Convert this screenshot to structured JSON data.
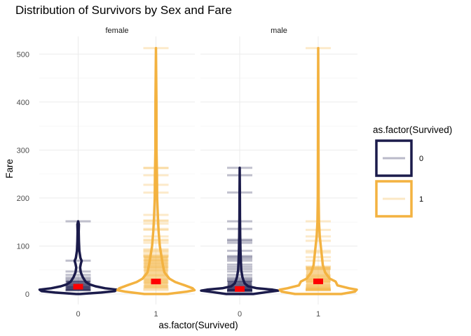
{
  "chart_data": {
    "type": "violin",
    "title": "Distribution of Survivors by Sex and Fare",
    "xlabel": "as.factor(Survived)",
    "ylabel": "Fare",
    "facets": [
      "female",
      "male"
    ],
    "categories": [
      "0",
      "1"
    ],
    "ylim": [
      0,
      530
    ],
    "yticks": [
      0,
      100,
      200,
      300,
      400,
      500
    ],
    "grid": true,
    "legend": {
      "title": "as.factor(Survived)",
      "position": "right",
      "entries": [
        "0",
        "1"
      ]
    },
    "colors": {
      "0": "#1b1b4b",
      "1": "#f3b240",
      "mean": "#ff0000"
    },
    "groups": [
      {
        "facet": "female",
        "survived": "0",
        "max": 151.55,
        "median": 15.25,
        "q1": 7.9,
        "q3": 27.9,
        "ticks": [
          7.75,
          7.9,
          8.05,
          9.5,
          10.5,
          12.5,
          14.45,
          15.25,
          17.8,
          21.1,
          25.47,
          27.9,
          31.27,
          34.38,
          39.69,
          46.9,
          69.55,
          151.55
        ],
        "density": [
          [
            0,
            0.05
          ],
          [
            3,
            0.6
          ],
          [
            6,
            0.95
          ],
          [
            9,
            1.0
          ],
          [
            12,
            0.7
          ],
          [
            16,
            0.45
          ],
          [
            20,
            0.3
          ],
          [
            25,
            0.2
          ],
          [
            30,
            0.16
          ],
          [
            35,
            0.12
          ],
          [
            45,
            0.07
          ],
          [
            55,
            0.05
          ],
          [
            63,
            0.07
          ],
          [
            69,
            0.09
          ],
          [
            75,
            0.06
          ],
          [
            90,
            0.03
          ],
          [
            110,
            0.02
          ],
          [
            130,
            0.015
          ],
          [
            145,
            0.02
          ],
          [
            151.55,
            0
          ]
        ]
      },
      {
        "facet": "female",
        "survived": "1",
        "max": 512.33,
        "median": 26,
        "q1": 12.07,
        "q3": 77.96,
        "ticks": [
          7.75,
          10.5,
          13,
          16.7,
          23,
          26,
          30,
          39,
          49.5,
          55,
          57,
          61.18,
          65,
          69.3,
          71.28,
          76.29,
          77.96,
          79.2,
          80,
          82.17,
          86.5,
          89.1,
          91.08,
          93.5,
          106.43,
          110.88,
          113.28,
          120,
          133.65,
          135.63,
          146.52,
          151.55,
          153.46,
          164.87,
          211.34,
          227.53,
          247.52,
          262.38,
          263,
          512.33
        ],
        "density": [
          [
            0,
            0.3
          ],
          [
            5,
            0.8
          ],
          [
            8,
            1.0
          ],
          [
            12,
            0.95
          ],
          [
            18,
            0.75
          ],
          [
            25,
            0.5
          ],
          [
            32,
            0.35
          ],
          [
            45,
            0.22
          ],
          [
            60,
            0.18
          ],
          [
            80,
            0.14
          ],
          [
            100,
            0.1
          ],
          [
            130,
            0.07
          ],
          [
            160,
            0.05
          ],
          [
            200,
            0.03
          ],
          [
            250,
            0.025
          ],
          [
            300,
            0.015
          ],
          [
            400,
            0.012
          ],
          [
            512.33,
            0
          ]
        ]
      },
      {
        "facet": "male",
        "survived": "0",
        "max": 263,
        "median": 10.5,
        "q1": 7.75,
        "q3": 26.55,
        "ticks": [
          0,
          4.01,
          6.24,
          6.95,
          7.05,
          7.25,
          7.5,
          7.75,
          7.9,
          8.05,
          8.66,
          9.5,
          10.5,
          13,
          14.5,
          16.1,
          20.58,
          26,
          26.55,
          29.13,
          31.28,
          34.38,
          39.69,
          46.9,
          52,
          56.5,
          61.18,
          69.55,
          73.5,
          76.73,
          79.2,
          90,
          106.42,
          110.88,
          113.28,
          135.63,
          151.55,
          211.5,
          247.52,
          263
        ],
        "density": [
          [
            0,
            0.35
          ],
          [
            4,
            0.7
          ],
          [
            7,
            1.0
          ],
          [
            9,
            0.85
          ],
          [
            12,
            0.45
          ],
          [
            16,
            0.22
          ],
          [
            22,
            0.13
          ],
          [
            28,
            0.1
          ],
          [
            35,
            0.07
          ],
          [
            50,
            0.04
          ],
          [
            70,
            0.03
          ],
          [
            90,
            0.02
          ],
          [
            120,
            0.012
          ],
          [
            160,
            0.008
          ],
          [
            200,
            0.006
          ],
          [
            263,
            0
          ]
        ]
      },
      {
        "facet": "male",
        "survived": "1",
        "max": 512.33,
        "median": 26.29,
        "q1": 9.5,
        "q3": 56.5,
        "ticks": [
          0,
          7.75,
          7.9,
          8.05,
          8.66,
          9.5,
          10.5,
          11.13,
          13,
          15.25,
          18.75,
          26,
          26.29,
          30.5,
          31.39,
          35.5,
          39,
          52,
          53.1,
          56.5,
          57,
          69.55,
          76.73,
          86.5,
          90,
          110.88,
          120,
          133.65,
          151.55,
          512.33
        ],
        "density": [
          [
            0,
            0.6
          ],
          [
            5,
            0.95
          ],
          [
            9,
            1.0
          ],
          [
            12,
            0.8
          ],
          [
            18,
            0.5
          ],
          [
            26,
            0.45
          ],
          [
            32,
            0.3
          ],
          [
            45,
            0.18
          ],
          [
            60,
            0.12
          ],
          [
            90,
            0.08
          ],
          [
            120,
            0.04
          ],
          [
            150,
            0.02
          ],
          [
            200,
            0.01
          ],
          [
            300,
            0.008
          ],
          [
            400,
            0.006
          ],
          [
            512.33,
            0
          ]
        ]
      }
    ]
  }
}
